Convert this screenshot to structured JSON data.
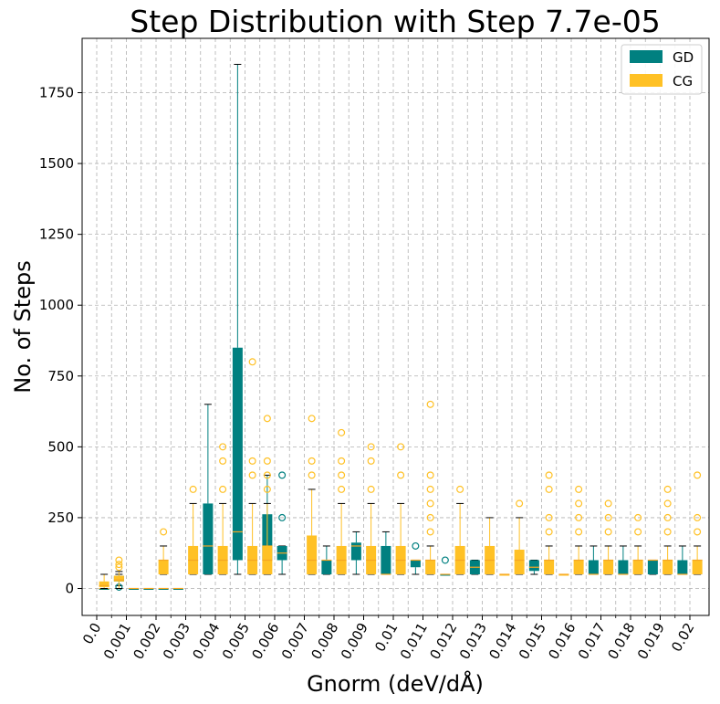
{
  "chart_data": {
    "type": "boxplot",
    "title": "Step Distribution with Step 7.7e-05",
    "xlabel": "Gnorm (deV/dÅ)",
    "ylabel": "No. of Steps",
    "ylim": [
      -90,
      1940
    ],
    "y_ticks": [
      0,
      250,
      500,
      750,
      1000,
      1250,
      1500,
      1750
    ],
    "categories": [
      "0.0",
      "0.001",
      "0.002",
      "0.003",
      "0.004",
      "0.005",
      "0.006",
      "0.007",
      "0.008",
      "0.009",
      "0.01",
      "0.011",
      "0.012",
      "0.013",
      "0.014",
      "0.015",
      "0.016",
      "0.017",
      "0.018",
      "0.019",
      "0.02"
    ],
    "grid": true,
    "legend_position": "top-right",
    "series": [
      {
        "name": "GD",
        "color": "#008080",
        "boxes": [
          {
            "x": 0.00025,
            "min": 0,
            "q1": 0,
            "median": 0,
            "q3": 0,
            "max": 0,
            "outliers": []
          },
          {
            "x": 0.00075,
            "min": 10,
            "q1": 25,
            "median": 38,
            "q3": 45,
            "max": 50,
            "outliers": [
              5
            ]
          },
          {
            "x": 0.00125,
            "min": 0,
            "q1": 0,
            "median": 0,
            "q3": 0,
            "max": 0,
            "outliers": []
          },
          {
            "x": 0.00175,
            "min": 0,
            "q1": 0,
            "median": 0,
            "q3": 0,
            "max": 0,
            "outliers": []
          },
          {
            "x": 0.00225,
            "min": 0,
            "q1": 0,
            "median": 0,
            "q3": 0,
            "max": 0,
            "outliers": []
          },
          {
            "x": 0.00275,
            "min": 0,
            "q1": 0,
            "median": 0,
            "q3": 0,
            "max": 0,
            "outliers": []
          },
          {
            "x": 0.00375,
            "min": 50,
            "q1": 50,
            "median": 150,
            "q3": 300,
            "max": 650,
            "outliers": []
          },
          {
            "x": 0.00475,
            "min": 50,
            "q1": 100,
            "median": 200,
            "q3": 850,
            "max": 1850,
            "outliers": []
          },
          {
            "x": 0.00575,
            "min": 50,
            "q1": 100,
            "median": 150,
            "q3": 262,
            "max": 400,
            "outliers": []
          },
          {
            "x": 0.00625,
            "min": 50,
            "q1": 100,
            "median": 125,
            "q3": 150,
            "max": 150,
            "outliers": [
              250,
              400
            ]
          },
          {
            "x": 0.00775,
            "min": 50,
            "q1": 50,
            "median": 100,
            "q3": 100,
            "max": 150,
            "outliers": []
          },
          {
            "x": 0.00875,
            "min": 50,
            "q1": 100,
            "median": 150,
            "q3": 162,
            "max": 200,
            "outliers": []
          },
          {
            "x": 0.00975,
            "min": 50,
            "q1": 50,
            "median": 50,
            "q3": 150,
            "max": 200,
            "outliers": []
          },
          {
            "x": 0.01075,
            "min": 50,
            "q1": 75,
            "median": 100,
            "q3": 100,
            "max": 100,
            "outliers": [
              150
            ]
          },
          {
            "x": 0.01175,
            "min": 50,
            "q1": 50,
            "median": 50,
            "q3": 50,
            "max": 50,
            "outliers": [
              100
            ]
          },
          {
            "x": 0.01275,
            "min": 50,
            "q1": 50,
            "median": 75,
            "q3": 100,
            "max": 100,
            "outliers": []
          },
          {
            "x": 0.01475,
            "min": 50,
            "q1": 62,
            "median": 75,
            "q3": 100,
            "max": 100,
            "outliers": []
          },
          {
            "x": 0.01675,
            "min": 50,
            "q1": 50,
            "median": 50,
            "q3": 100,
            "max": 150,
            "outliers": []
          },
          {
            "x": 0.01775,
            "min": 50,
            "q1": 50,
            "median": 50,
            "q3": 100,
            "max": 150,
            "outliers": []
          },
          {
            "x": 0.01875,
            "min": 50,
            "q1": 50,
            "median": 100,
            "q3": 100,
            "max": 100,
            "outliers": []
          },
          {
            "x": 0.01975,
            "min": 50,
            "q1": 50,
            "median": 50,
            "q3": 100,
            "max": 150,
            "outliers": []
          }
        ]
      },
      {
        "name": "CG",
        "color": "#FFC125",
        "boxes": [
          {
            "x": 0.00025,
            "min": 0,
            "q1": 5,
            "median": 10,
            "q3": 25,
            "max": 50,
            "outliers": []
          },
          {
            "x": 0.00075,
            "min": 0,
            "q1": 25,
            "median": 30,
            "q3": 45,
            "max": 60,
            "outliers": [
              75,
              85,
              100
            ]
          },
          {
            "x": 0.00225,
            "min": 50,
            "q1": 50,
            "median": 100,
            "q3": 100,
            "max": 150,
            "outliers": [
              200
            ]
          },
          {
            "x": 0.00325,
            "min": 50,
            "q1": 50,
            "median": 100,
            "q3": 150,
            "max": 300,
            "outliers": [
              350
            ]
          },
          {
            "x": 0.00425,
            "min": 50,
            "q1": 50,
            "median": 100,
            "q3": 150,
            "max": 300,
            "outliers": [
              350,
              450,
              500
            ]
          },
          {
            "x": 0.00525,
            "min": 50,
            "q1": 50,
            "median": 100,
            "q3": 150,
            "max": 300,
            "outliers": [
              400,
              450,
              800
            ]
          },
          {
            "x": 0.00575,
            "min": 50,
            "q1": 50,
            "median": 100,
            "q3": 150,
            "max": 300,
            "outliers": [
              350,
              400,
              450,
              600
            ]
          },
          {
            "x": 0.00725,
            "min": 50,
            "q1": 50,
            "median": 100,
            "q3": 187,
            "max": 350,
            "outliers": [
              400,
              450,
              600
            ]
          },
          {
            "x": 0.00825,
            "min": 50,
            "q1": 50,
            "median": 100,
            "q3": 150,
            "max": 300,
            "outliers": [
              350,
              400,
              450,
              550
            ]
          },
          {
            "x": 0.00925,
            "min": 50,
            "q1": 50,
            "median": 100,
            "q3": 150,
            "max": 300,
            "outliers": [
              350,
              450,
              500
            ]
          },
          {
            "x": 0.01025,
            "min": 50,
            "q1": 50,
            "median": 100,
            "q3": 150,
            "max": 300,
            "outliers": [
              400,
              500
            ]
          },
          {
            "x": 0.01125,
            "min": 50,
            "q1": 50,
            "median": 100,
            "q3": 100,
            "max": 150,
            "outliers": [
              200,
              250,
              300,
              350,
              400,
              650
            ]
          },
          {
            "x": 0.01225,
            "min": 50,
            "q1": 50,
            "median": 100,
            "q3": 150,
            "max": 300,
            "outliers": [
              350
            ]
          },
          {
            "x": 0.01325,
            "min": 50,
            "q1": 50,
            "median": 100,
            "q3": 150,
            "max": 250,
            "outliers": []
          },
          {
            "x": 0.01375,
            "min": 50,
            "q1": 50,
            "median": 50,
            "q3": 50,
            "max": 50,
            "outliers": []
          },
          {
            "x": 0.01425,
            "min": 50,
            "q1": 50,
            "median": 100,
            "q3": 137,
            "max": 250,
            "outliers": [
              300
            ]
          },
          {
            "x": 0.01525,
            "min": 50,
            "q1": 50,
            "median": 100,
            "q3": 100,
            "max": 150,
            "outliers": [
              200,
              250,
              350,
              400
            ]
          },
          {
            "x": 0.01575,
            "min": 50,
            "q1": 50,
            "median": 50,
            "q3": 50,
            "max": 50,
            "outliers": []
          },
          {
            "x": 0.01625,
            "min": 50,
            "q1": 50,
            "median": 100,
            "q3": 100,
            "max": 150,
            "outliers": [
              200,
              250,
              300,
              350
            ]
          },
          {
            "x": 0.01725,
            "min": 50,
            "q1": 50,
            "median": 100,
            "q3": 100,
            "max": 150,
            "outliers": [
              200,
              250,
              300
            ]
          },
          {
            "x": 0.01825,
            "min": 50,
            "q1": 50,
            "median": 100,
            "q3": 100,
            "max": 150,
            "outliers": [
              200,
              250
            ]
          },
          {
            "x": 0.01925,
            "min": 50,
            "q1": 50,
            "median": 100,
            "q3": 100,
            "max": 150,
            "outliers": [
              200,
              250,
              300,
              350
            ]
          },
          {
            "x": 0.02025,
            "min": 50,
            "q1": 50,
            "median": 100,
            "q3": 100,
            "max": 150,
            "outliers": [
              200,
              250,
              400
            ]
          }
        ]
      }
    ]
  }
}
